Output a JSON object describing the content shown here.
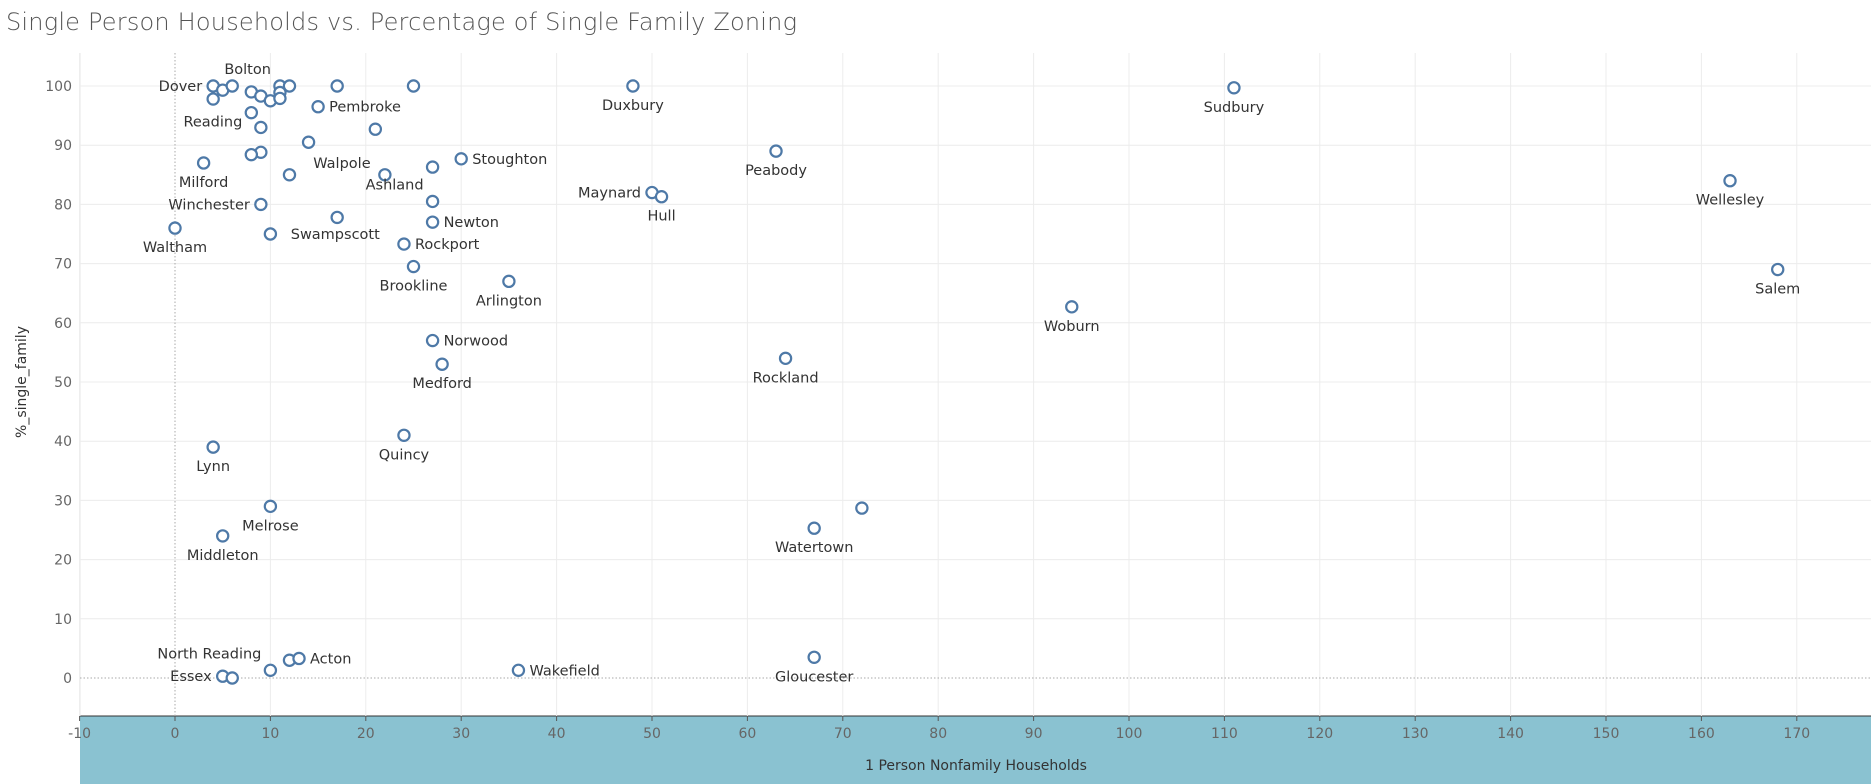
{
  "title": "Single Person Households vs. Percentage of Single Family Zoning",
  "chart_data": {
    "type": "scatter",
    "title": "Single Person Households vs. Percentage of Single Family Zoning",
    "xlabel": "1 Person Nonfamily Households",
    "ylabel": "%_single_family",
    "xlim": [
      -11,
      178
    ],
    "ylim": [
      -6,
      106
    ],
    "xticks": [
      -10,
      0,
      10,
      20,
      30,
      40,
      50,
      60,
      70,
      80,
      90,
      100,
      110,
      120,
      130,
      140,
      150,
      160,
      170
    ],
    "yticks": [
      0,
      10,
      20,
      30,
      40,
      50,
      60,
      70,
      80,
      90,
      100
    ],
    "grid": true,
    "marker_color": "#4e79a7",
    "x_axis_band_color": "#8ac2d1",
    "points": [
      {
        "x": 4,
        "y": 100,
        "label": "Dover",
        "pos": "left"
      },
      {
        "x": 5,
        "y": 99.3,
        "label": ""
      },
      {
        "x": 6,
        "y": 100,
        "label": ""
      },
      {
        "x": 8,
        "y": 99,
        "label": ""
      },
      {
        "x": 9,
        "y": 98.3,
        "label": ""
      },
      {
        "x": 10,
        "y": 97.5,
        "label": ""
      },
      {
        "x": 11,
        "y": 100,
        "label": "Bolton",
        "pos": "above-left"
      },
      {
        "x": 11,
        "y": 98.9,
        "label": ""
      },
      {
        "x": 11,
        "y": 97.9,
        "label": ""
      },
      {
        "x": 12,
        "y": 100,
        "label": ""
      },
      {
        "x": 17,
        "y": 100,
        "label": ""
      },
      {
        "x": 25,
        "y": 100,
        "label": ""
      },
      {
        "x": 4,
        "y": 97.8,
        "label": ""
      },
      {
        "x": 8,
        "y": 95.5,
        "label": "Reading",
        "pos": "below-left"
      },
      {
        "x": 15,
        "y": 96.5,
        "label": "Pembroke",
        "pos": "right"
      },
      {
        "x": 9,
        "y": 93,
        "label": ""
      },
      {
        "x": 21,
        "y": 92.7,
        "label": ""
      },
      {
        "x": 14,
        "y": 90.5,
        "label": ""
      },
      {
        "x": 9,
        "y": 88.8,
        "label": ""
      },
      {
        "x": 8,
        "y": 88.4,
        "label": ""
      },
      {
        "x": 3,
        "y": 87,
        "label": "Milford",
        "pos": "below"
      },
      {
        "x": 17.5,
        "y": 87,
        "label": "Walpole",
        "pos": "label-only"
      },
      {
        "x": 12,
        "y": 85,
        "label": ""
      },
      {
        "x": 22,
        "y": 85,
        "label": ""
      },
      {
        "x": 27,
        "y": 86.3,
        "label": ""
      },
      {
        "x": 30,
        "y": 87.7,
        "label": "Stoughton",
        "pos": "right"
      },
      {
        "x": 27,
        "y": 80.5,
        "label": "Ashland",
        "pos": "above-left"
      },
      {
        "x": 9,
        "y": 80,
        "label": "Winchester",
        "pos": "left"
      },
      {
        "x": 17,
        "y": 77.8,
        "label": ""
      },
      {
        "x": 27,
        "y": 77,
        "label": "Newton",
        "pos": "right"
      },
      {
        "x": 0,
        "y": 76,
        "label": "Waltham",
        "pos": "below"
      },
      {
        "x": 10,
        "y": 75,
        "label": ""
      },
      {
        "x": 16.8,
        "y": 75,
        "label": "Swampscott",
        "pos": "label-only"
      },
      {
        "x": 24,
        "y": 73.3,
        "label": "Rockport",
        "pos": "right"
      },
      {
        "x": 25,
        "y": 69.5,
        "label": "Brookline",
        "pos": "below"
      },
      {
        "x": 35,
        "y": 67,
        "label": "Arlington",
        "pos": "below"
      },
      {
        "x": 27,
        "y": 57,
        "label": "Norwood",
        "pos": "right"
      },
      {
        "x": 28,
        "y": 53,
        "label": "Medford",
        "pos": "below"
      },
      {
        "x": 24,
        "y": 41,
        "label": "Quincy",
        "pos": "below"
      },
      {
        "x": 4,
        "y": 39,
        "label": "Lynn",
        "pos": "below"
      },
      {
        "x": 10,
        "y": 29,
        "label": "Melrose",
        "pos": "below"
      },
      {
        "x": 5,
        "y": 24,
        "label": "Middleton",
        "pos": "below"
      },
      {
        "x": 12,
        "y": 3,
        "label": ""
      },
      {
        "x": 13,
        "y": 3.3,
        "label": "Acton",
        "pos": "right"
      },
      {
        "x": 10,
        "y": 1.3,
        "label": "North Reading",
        "pos": "above-left"
      },
      {
        "x": 5,
        "y": 0.3,
        "label": "Essex",
        "pos": "left"
      },
      {
        "x": 6,
        "y": 0,
        "label": ""
      },
      {
        "x": 36,
        "y": 1.3,
        "label": "Wakefield",
        "pos": "right"
      },
      {
        "x": 48,
        "y": 100,
        "label": "Duxbury",
        "pos": "below"
      },
      {
        "x": 63,
        "y": 89,
        "label": "Peabody",
        "pos": "below"
      },
      {
        "x": 50,
        "y": 82,
        "label": "Maynard",
        "pos": "left"
      },
      {
        "x": 51,
        "y": 81.3,
        "label": "Hull",
        "pos": "below"
      },
      {
        "x": 64,
        "y": 54,
        "label": "Rockland",
        "pos": "below"
      },
      {
        "x": 67,
        "y": 25.3,
        "label": "Watertown",
        "pos": "below"
      },
      {
        "x": 72,
        "y": 28.7,
        "label": ""
      },
      {
        "x": 67,
        "y": 3.5,
        "label": "Gloucester",
        "pos": "below"
      },
      {
        "x": 94,
        "y": 62.7,
        "label": "Woburn",
        "pos": "below"
      },
      {
        "x": 111,
        "y": 99.7,
        "label": "Sudbury",
        "pos": "below"
      },
      {
        "x": 163,
        "y": 84,
        "label": "Wellesley",
        "pos": "below"
      },
      {
        "x": 168,
        "y": 69,
        "label": "Salem",
        "pos": "below"
      }
    ]
  }
}
